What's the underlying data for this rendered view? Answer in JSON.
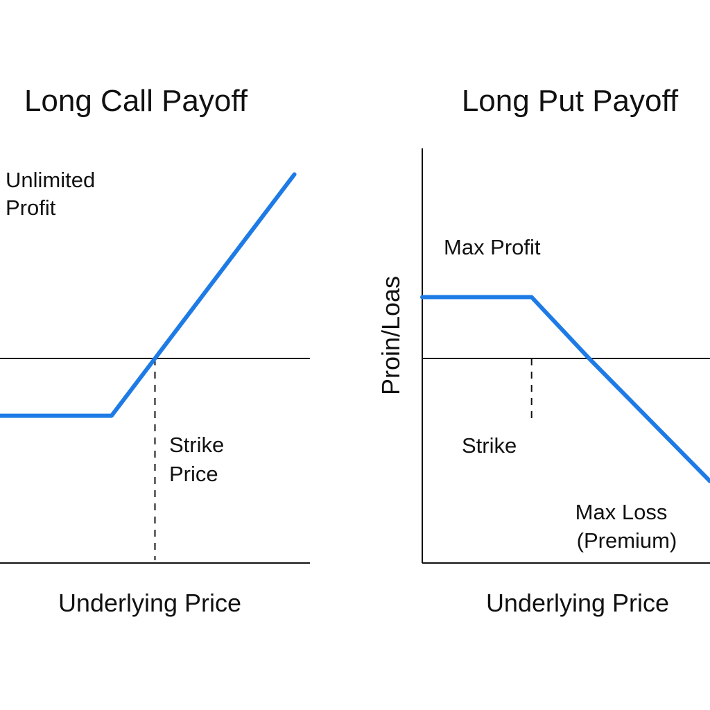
{
  "chart_data": [
    {
      "type": "line",
      "title": "Long Call Payoff",
      "xlabel": "Underlying Price",
      "ylabel": "",
      "line_color": "#1e7be6",
      "xlim": [
        0,
        100
      ],
      "ylim": [
        -1,
        1
      ],
      "series": [
        {
          "x": [
            0,
            36,
            50,
            95
          ],
          "y": [
            -0.28,
            -0.28,
            0,
            0.9
          ]
        }
      ],
      "strike": {
        "x": 50
      },
      "annotations": {
        "profit_line1": "Unlimited",
        "profit_line2": "Profit",
        "strike_line1": "Strike",
        "strike_line2": "Price"
      }
    },
    {
      "type": "line",
      "title": "Long Put Payoff",
      "xlabel": "Underlying Price",
      "ylabel": "Proin/Loas",
      "line_color": "#1e7be6",
      "xlim": [
        0,
        100
      ],
      "ylim": [
        -1,
        1
      ],
      "series": [
        {
          "x": [
            0,
            38,
            58,
            100
          ],
          "y": [
            0.3,
            0.3,
            0,
            -0.6
          ]
        }
      ],
      "strike": {
        "x": 38
      },
      "annotations": {
        "max_profit": "Max Profit",
        "strike": "Strike",
        "max_loss_line1": "Max Loss",
        "max_loss_line2": "(Premium)"
      }
    }
  ]
}
